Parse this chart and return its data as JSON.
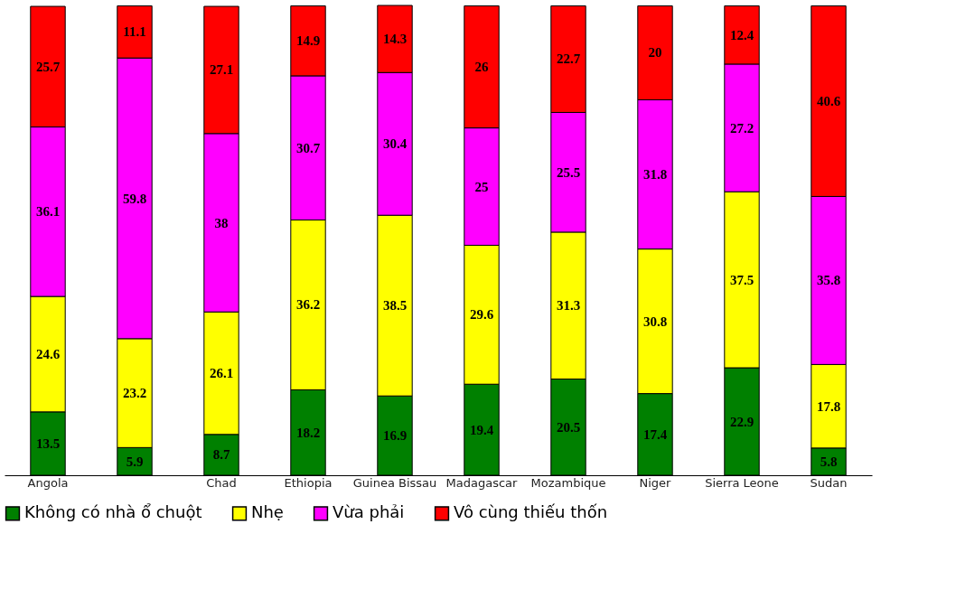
{
  "chart_data": {
    "type": "bar",
    "stacked": true,
    "data_labels": true,
    "tick_labels": "x",
    "legend": "bottom",
    "grid": false,
    "categories": [
      "Angola",
      null,
      "Chad",
      "Ethiopia",
      "Guinea Bissau",
      "Madagascar",
      "Mozambique",
      "Niger",
      "Sierra Leone",
      "Sudan"
    ],
    "series": [
      {
        "name": "Không có nhà ổ chuột",
        "color": "#008000",
        "values": [
          13.5,
          5.9,
          8.7,
          18.2,
          16.9,
          19.4,
          20.5,
          17.4,
          22.9,
          5.8
        ]
      },
      {
        "name": "Nhẹ",
        "color": "#ffff00",
        "values": [
          24.6,
          23.2,
          26.1,
          36.2,
          38.5,
          29.6,
          31.3,
          30.8,
          37.5,
          17.8
        ]
      },
      {
        "name": "Vừa phải",
        "color": "#ff00ff",
        "values": [
          36.1,
          59.8,
          38,
          30.7,
          30.4,
          25,
          25.5,
          31.8,
          27.2,
          35.8
        ]
      },
      {
        "name": "Vô cùng thiếu thốn",
        "color": "#ff0000",
        "values": [
          25.7,
          11.1,
          27.1,
          14.9,
          14.3,
          26,
          22.7,
          20,
          12.4,
          40.6
        ]
      }
    ]
  }
}
